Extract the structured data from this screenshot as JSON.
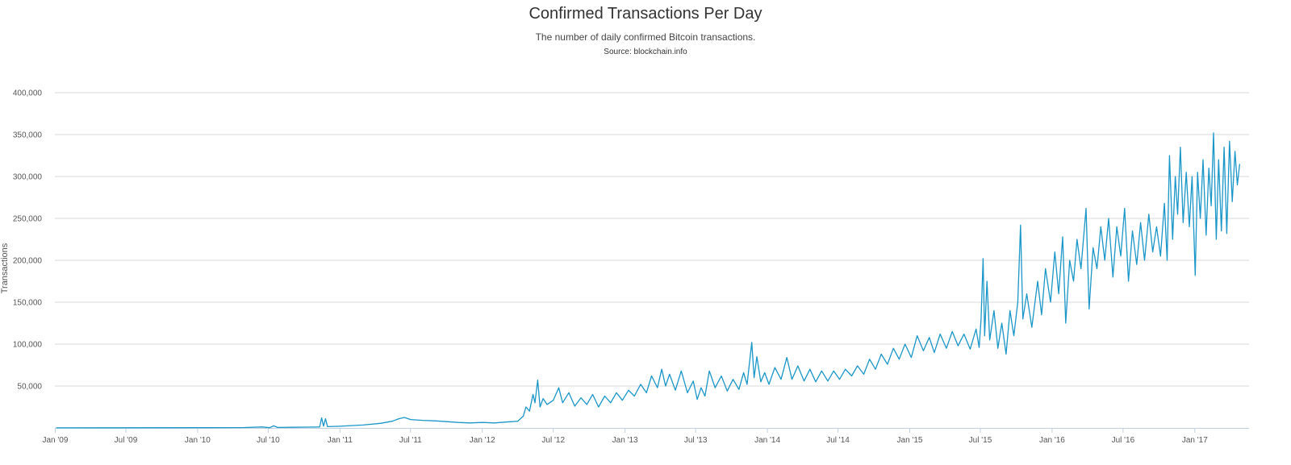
{
  "chart_data": {
    "type": "line",
    "title": "Confirmed Transactions Per Day",
    "subtitle": "The number of daily confirmed Bitcoin transactions.",
    "source": "Source: blockchain.info",
    "ylabel": "Transactions",
    "xlabel": "",
    "xlim": [
      "2009-01-03",
      "2017-04-30"
    ],
    "ylim": [
      0,
      400000
    ],
    "yticks": [
      {
        "value": 50000,
        "label": "50,000"
      },
      {
        "value": 100000,
        "label": "100,000"
      },
      {
        "value": 150000,
        "label": "150,000"
      },
      {
        "value": 200000,
        "label": "200,000"
      },
      {
        "value": 250000,
        "label": "250,000"
      },
      {
        "value": 300000,
        "label": "300,000"
      },
      {
        "value": 350000,
        "label": "350,000"
      },
      {
        "value": 400000,
        "label": "400,000"
      }
    ],
    "xticks": [
      {
        "date": "2009-01-01",
        "label": "Jan '09"
      },
      {
        "date": "2009-07-01",
        "label": "Jul '09"
      },
      {
        "date": "2010-01-01",
        "label": "Jan '10"
      },
      {
        "date": "2010-07-01",
        "label": "Jul '10"
      },
      {
        "date": "2011-01-01",
        "label": "Jan '11"
      },
      {
        "date": "2011-07-01",
        "label": "Jul '11"
      },
      {
        "date": "2012-01-01",
        "label": "Jan '12"
      },
      {
        "date": "2012-07-01",
        "label": "Jul '12"
      },
      {
        "date": "2013-01-01",
        "label": "Jan '13"
      },
      {
        "date": "2013-07-01",
        "label": "Jul '13"
      },
      {
        "date": "2014-01-01",
        "label": "Jan '14"
      },
      {
        "date": "2014-07-01",
        "label": "Jul '14"
      },
      {
        "date": "2015-01-01",
        "label": "Jan '15"
      },
      {
        "date": "2015-07-01",
        "label": "Jul '15"
      },
      {
        "date": "2016-01-01",
        "label": "Jan '16"
      },
      {
        "date": "2016-07-01",
        "label": "Jul '16"
      },
      {
        "date": "2017-01-01",
        "label": "Jan '17"
      }
    ],
    "grid": true,
    "legend": "none",
    "line_color": "#1a96c8",
    "series": [
      {
        "name": "",
        "points": [
          [
            "2009-01-03",
            100
          ],
          [
            "2009-07-01",
            150
          ],
          [
            "2010-01-01",
            300
          ],
          [
            "2010-05-01",
            500
          ],
          [
            "2010-06-15",
            1200
          ],
          [
            "2010-07-05",
            300
          ],
          [
            "2010-07-15",
            2500
          ],
          [
            "2010-07-25",
            600
          ],
          [
            "2010-09-01",
            800
          ],
          [
            "2010-11-10",
            1200
          ],
          [
            "2010-11-15",
            12000
          ],
          [
            "2010-11-20",
            2000
          ],
          [
            "2010-11-25",
            11000
          ],
          [
            "2010-11-30",
            1500
          ],
          [
            "2011-01-01",
            2000
          ],
          [
            "2011-03-01",
            3500
          ],
          [
            "2011-04-15",
            5500
          ],
          [
            "2011-05-15",
            8000
          ],
          [
            "2011-06-01",
            11000
          ],
          [
            "2011-06-15",
            12500
          ],
          [
            "2011-07-01",
            10000
          ],
          [
            "2011-08-01",
            9000
          ],
          [
            "2011-09-01",
            8500
          ],
          [
            "2011-10-01",
            7500
          ],
          [
            "2011-11-01",
            6500
          ],
          [
            "2011-12-01",
            6000
          ],
          [
            "2012-01-01",
            6500
          ],
          [
            "2012-02-01",
            6000
          ],
          [
            "2012-03-01",
            7000
          ],
          [
            "2012-04-01",
            8000
          ],
          [
            "2012-04-15",
            14000
          ],
          [
            "2012-04-22",
            25000
          ],
          [
            "2012-05-01",
            20000
          ],
          [
            "2012-05-10",
            40000
          ],
          [
            "2012-05-15",
            30000
          ],
          [
            "2012-05-22",
            57000
          ],
          [
            "2012-05-28",
            25000
          ],
          [
            "2012-06-05",
            35000
          ],
          [
            "2012-06-15",
            28000
          ],
          [
            "2012-07-01",
            33000
          ],
          [
            "2012-07-15",
            48000
          ],
          [
            "2012-07-25",
            30000
          ],
          [
            "2012-08-10",
            42000
          ],
          [
            "2012-08-25",
            26000
          ],
          [
            "2012-09-10",
            36000
          ],
          [
            "2012-09-25",
            28000
          ],
          [
            "2012-10-10",
            40000
          ],
          [
            "2012-10-25",
            25000
          ],
          [
            "2012-11-10",
            38000
          ],
          [
            "2012-11-25",
            30000
          ],
          [
            "2012-12-10",
            42000
          ],
          [
            "2012-12-25",
            33000
          ],
          [
            "2013-01-10",
            45000
          ],
          [
            "2013-01-25",
            38000
          ],
          [
            "2013-02-10",
            52000
          ],
          [
            "2013-02-25",
            42000
          ],
          [
            "2013-03-10",
            62000
          ],
          [
            "2013-03-25",
            48000
          ],
          [
            "2013-04-05",
            70000
          ],
          [
            "2013-04-15",
            50000
          ],
          [
            "2013-04-25",
            64000
          ],
          [
            "2013-05-10",
            45000
          ],
          [
            "2013-05-25",
            68000
          ],
          [
            "2013-06-10",
            42000
          ],
          [
            "2013-06-25",
            56000
          ],
          [
            "2013-07-05",
            34000
          ],
          [
            "2013-07-15",
            48000
          ],
          [
            "2013-07-25",
            38000
          ],
          [
            "2013-08-05",
            68000
          ],
          [
            "2013-08-20",
            48000
          ],
          [
            "2013-09-05",
            62000
          ],
          [
            "2013-09-20",
            44000
          ],
          [
            "2013-10-05",
            58000
          ],
          [
            "2013-10-20",
            46000
          ],
          [
            "2013-11-01",
            66000
          ],
          [
            "2013-11-10",
            52000
          ],
          [
            "2013-11-22",
            102000
          ],
          [
            "2013-11-28",
            60000
          ],
          [
            "2013-12-05",
            85000
          ],
          [
            "2013-12-15",
            55000
          ],
          [
            "2013-12-25",
            66000
          ],
          [
            "2014-01-05",
            52000
          ],
          [
            "2014-01-20",
            72000
          ],
          [
            "2014-02-05",
            58000
          ],
          [
            "2014-02-20",
            84000
          ],
          [
            "2014-03-05",
            58000
          ],
          [
            "2014-03-20",
            74000
          ],
          [
            "2014-04-05",
            56000
          ],
          [
            "2014-04-20",
            70000
          ],
          [
            "2014-05-05",
            55000
          ],
          [
            "2014-05-20",
            68000
          ],
          [
            "2014-06-05",
            56000
          ],
          [
            "2014-06-20",
            68000
          ],
          [
            "2014-07-05",
            58000
          ],
          [
            "2014-07-20",
            70000
          ],
          [
            "2014-08-05",
            62000
          ],
          [
            "2014-08-20",
            74000
          ],
          [
            "2014-09-05",
            64000
          ],
          [
            "2014-09-20",
            82000
          ],
          [
            "2014-10-05",
            70000
          ],
          [
            "2014-10-20",
            88000
          ],
          [
            "2014-11-05",
            76000
          ],
          [
            "2014-11-20",
            95000
          ],
          [
            "2014-12-05",
            82000
          ],
          [
            "2014-12-20",
            100000
          ],
          [
            "2015-01-05",
            84000
          ],
          [
            "2015-01-20",
            110000
          ],
          [
            "2015-02-05",
            92000
          ],
          [
            "2015-02-20",
            108000
          ],
          [
            "2015-03-05",
            90000
          ],
          [
            "2015-03-20",
            112000
          ],
          [
            "2015-04-05",
            95000
          ],
          [
            "2015-04-20",
            115000
          ],
          [
            "2015-05-05",
            98000
          ],
          [
            "2015-05-20",
            112000
          ],
          [
            "2015-06-05",
            94000
          ],
          [
            "2015-06-20",
            118000
          ],
          [
            "2015-06-28",
            96000
          ],
          [
            "2015-07-03",
            130000
          ],
          [
            "2015-07-08",
            202000
          ],
          [
            "2015-07-12",
            110000
          ],
          [
            "2015-07-18",
            175000
          ],
          [
            "2015-07-25",
            105000
          ],
          [
            "2015-08-05",
            140000
          ],
          [
            "2015-08-15",
            95000
          ],
          [
            "2015-08-25",
            125000
          ],
          [
            "2015-09-05",
            88000
          ],
          [
            "2015-09-15",
            140000
          ],
          [
            "2015-09-25",
            110000
          ],
          [
            "2015-10-05",
            150000
          ],
          [
            "2015-10-12",
            242000
          ],
          [
            "2015-10-18",
            130000
          ],
          [
            "2015-10-28",
            160000
          ],
          [
            "2015-11-10",
            120000
          ],
          [
            "2015-11-25",
            175000
          ],
          [
            "2015-12-05",
            135000
          ],
          [
            "2015-12-15",
            190000
          ],
          [
            "2015-12-28",
            150000
          ],
          [
            "2016-01-08",
            210000
          ],
          [
            "2016-01-18",
            160000
          ],
          [
            "2016-01-28",
            228000
          ],
          [
            "2016-02-05",
            125000
          ],
          [
            "2016-02-15",
            200000
          ],
          [
            "2016-02-25",
            175000
          ],
          [
            "2016-03-05",
            225000
          ],
          [
            "2016-03-15",
            190000
          ],
          [
            "2016-03-28",
            262000
          ],
          [
            "2016-04-05",
            142000
          ],
          [
            "2016-04-15",
            215000
          ],
          [
            "2016-04-25",
            190000
          ],
          [
            "2016-05-05",
            240000
          ],
          [
            "2016-05-15",
            200000
          ],
          [
            "2016-05-25",
            250000
          ],
          [
            "2016-06-05",
            180000
          ],
          [
            "2016-06-15",
            240000
          ],
          [
            "2016-06-25",
            205000
          ],
          [
            "2016-07-05",
            262000
          ],
          [
            "2016-07-15",
            175000
          ],
          [
            "2016-07-25",
            235000
          ],
          [
            "2016-08-05",
            195000
          ],
          [
            "2016-08-15",
            245000
          ],
          [
            "2016-08-25",
            200000
          ],
          [
            "2016-09-05",
            255000
          ],
          [
            "2016-09-15",
            210000
          ],
          [
            "2016-09-25",
            240000
          ],
          [
            "2016-10-05",
            205000
          ],
          [
            "2016-10-15",
            268000
          ],
          [
            "2016-10-22",
            200000
          ],
          [
            "2016-10-28",
            325000
          ],
          [
            "2016-11-05",
            225000
          ],
          [
            "2016-11-12",
            300000
          ],
          [
            "2016-11-18",
            255000
          ],
          [
            "2016-11-25",
            335000
          ],
          [
            "2016-12-02",
            245000
          ],
          [
            "2016-12-10",
            305000
          ],
          [
            "2016-12-18",
            240000
          ],
          [
            "2016-12-25",
            300000
          ],
          [
            "2017-01-02",
            182000
          ],
          [
            "2017-01-08",
            305000
          ],
          [
            "2017-01-15",
            250000
          ],
          [
            "2017-01-22",
            320000
          ],
          [
            "2017-01-30",
            230000
          ],
          [
            "2017-02-06",
            310000
          ],
          [
            "2017-02-12",
            265000
          ],
          [
            "2017-02-18",
            352000
          ],
          [
            "2017-02-25",
            225000
          ],
          [
            "2017-03-03",
            320000
          ],
          [
            "2017-03-10",
            235000
          ],
          [
            "2017-03-17",
            335000
          ],
          [
            "2017-03-24",
            232000
          ],
          [
            "2017-03-31",
            342000
          ],
          [
            "2017-04-07",
            270000
          ],
          [
            "2017-04-14",
            330000
          ],
          [
            "2017-04-20",
            290000
          ],
          [
            "2017-04-26",
            315000
          ]
        ]
      }
    ]
  }
}
